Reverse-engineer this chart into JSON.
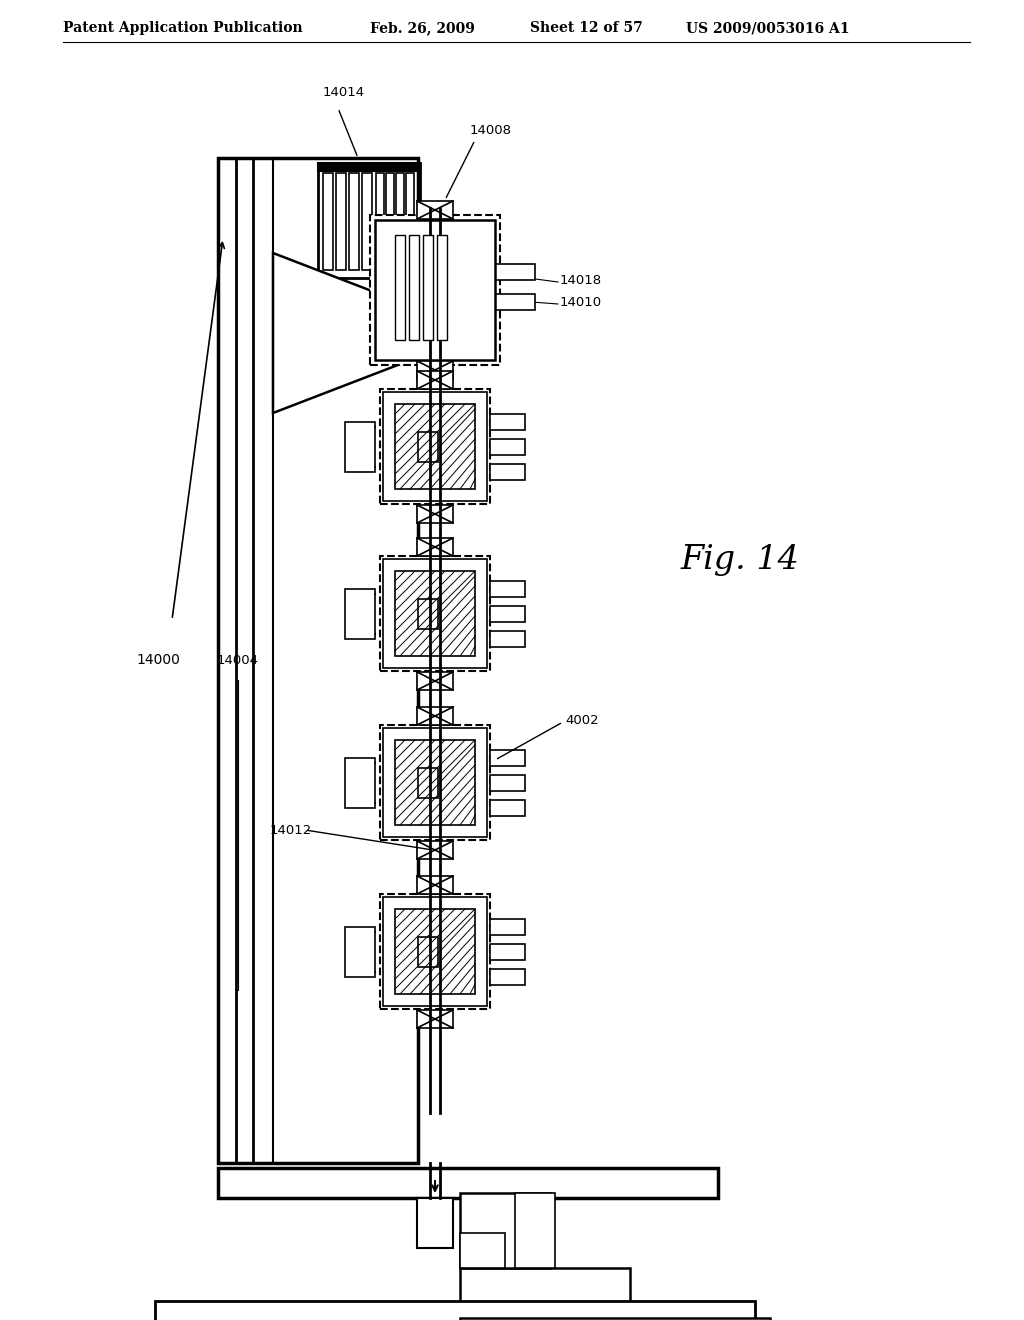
{
  "bg_color": "#ffffff",
  "header_text": "Patent Application Publication",
  "header_date": "Feb. 26, 2009",
  "header_sheet": "Sheet 12 of 57",
  "header_patent": "US 2009/0053016 A1",
  "fig_label": "Fig. 14"
}
